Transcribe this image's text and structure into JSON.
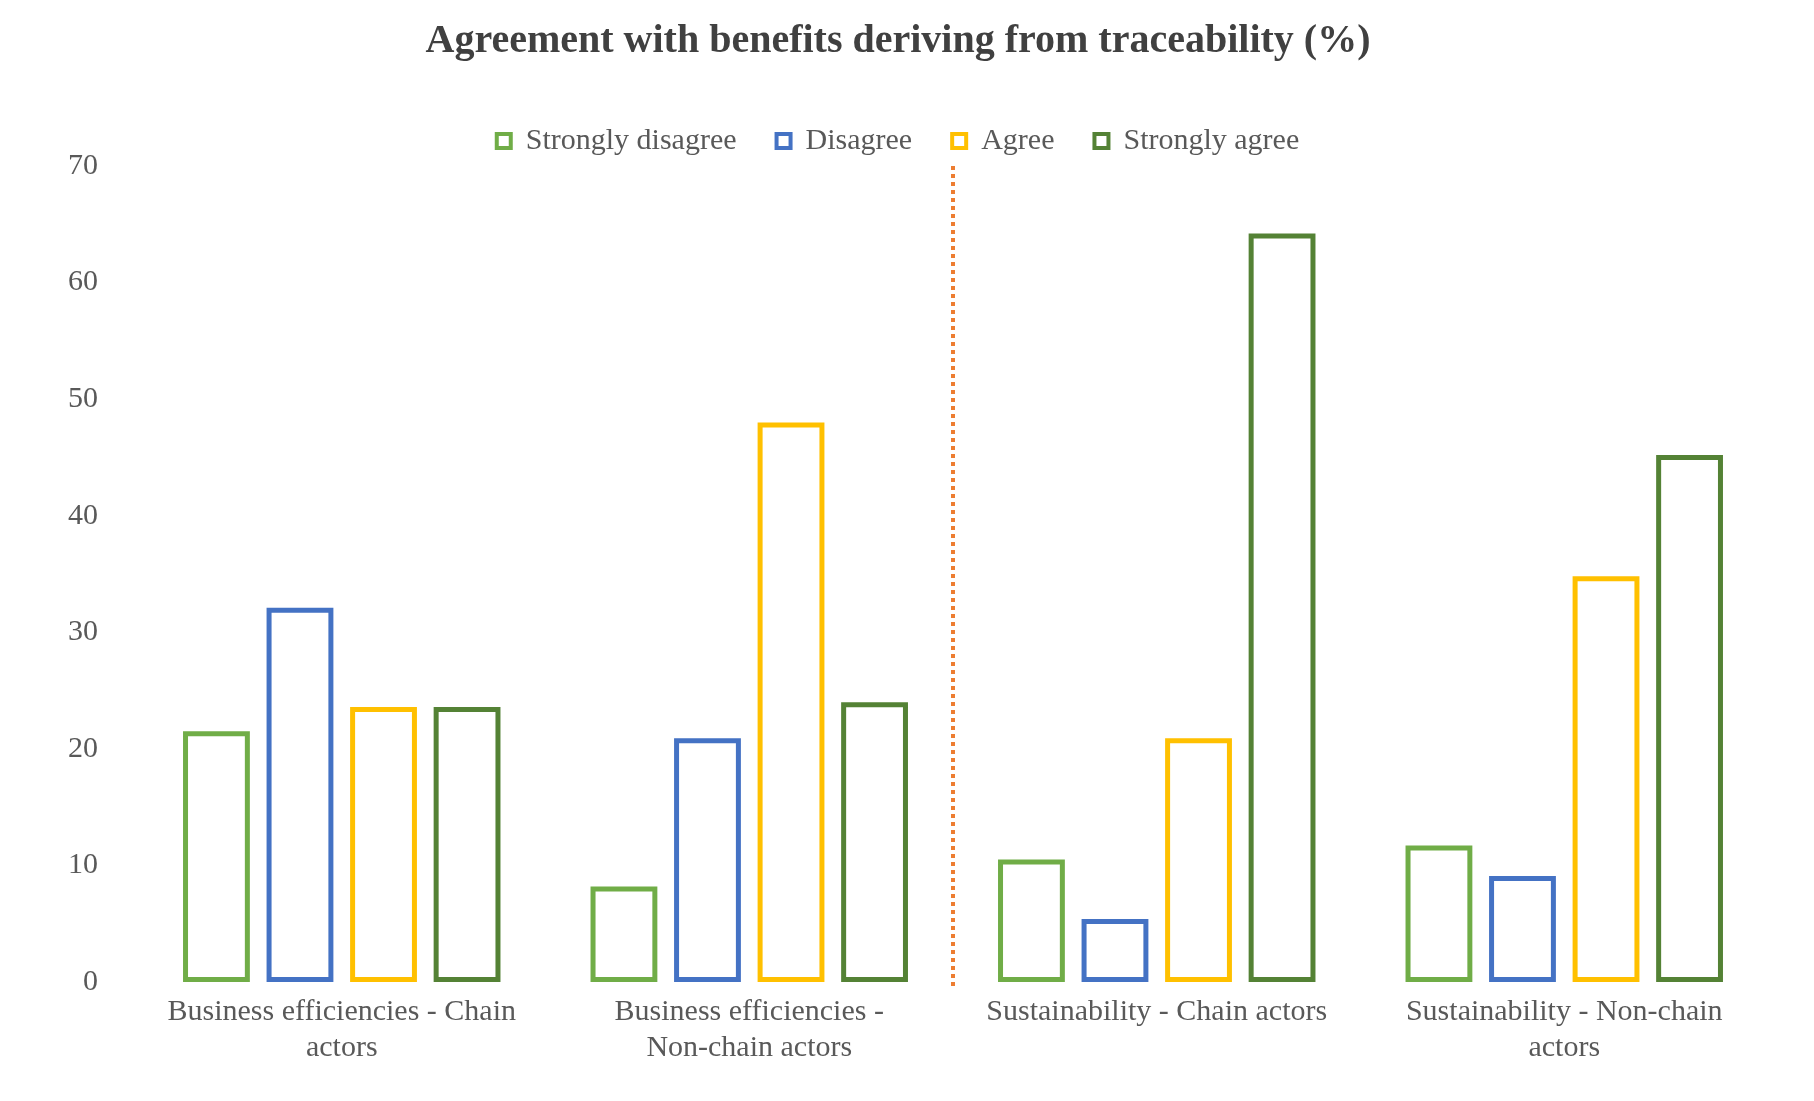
{
  "chart_data": {
    "type": "bar",
    "title": "Agreement with benefits deriving from traceability (%)",
    "categories": [
      "Business efficiencies - Chain actors",
      "Business efficiencies - Non-chain actors",
      "Sustainability - Chain actors",
      "Sustainability - Non-chain actors"
    ],
    "series": [
      {
        "name": "Strongly disagree",
        "color": "#70ad47",
        "values": [
          21.5,
          8.2,
          10.5,
          11.7
        ]
      },
      {
        "name": "Disagree",
        "color": "#4472c4",
        "values": [
          32.1,
          20.9,
          5.4,
          9.1
        ]
      },
      {
        "name": "Agree",
        "color": "#ffc000",
        "values": [
          23.6,
          48.0,
          20.9,
          34.8
        ]
      },
      {
        "name": "Strongly agree",
        "color": "#548235",
        "values": [
          23.6,
          24.0,
          64.2,
          45.2
        ]
      }
    ],
    "ylim": [
      0,
      70
    ],
    "yticks": [
      0,
      10,
      20,
      30,
      40,
      50,
      60,
      70
    ],
    "grid": false,
    "legend": "top"
  }
}
